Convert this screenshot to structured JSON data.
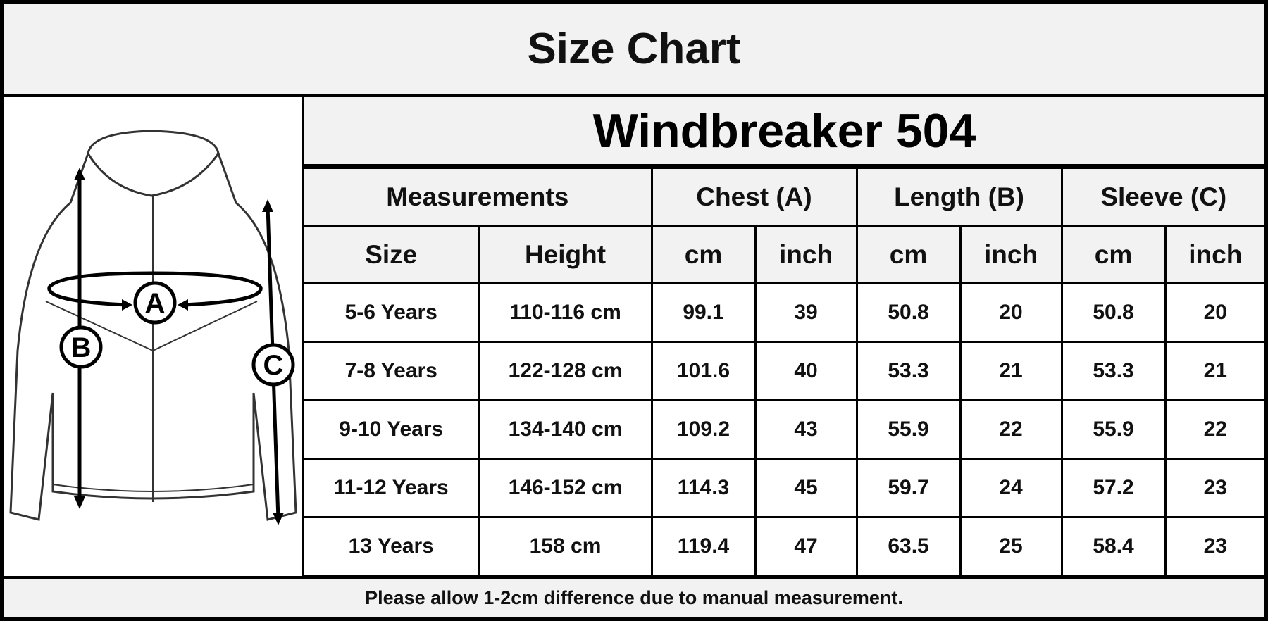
{
  "title": "Size Chart",
  "model": "Windbreaker 504",
  "diagram": {
    "labels": {
      "a": "A",
      "b": "B",
      "c": "C"
    },
    "image": "jacket-sketch"
  },
  "headers": {
    "group": [
      "Measurements",
      "Chest (A)",
      "Length (B)",
      "Sleeve (C)"
    ],
    "sub": [
      "Size",
      "Height",
      "cm",
      "inch",
      "cm",
      "inch",
      "cm",
      "inch"
    ]
  },
  "rows": [
    [
      "5-6 Years",
      "110-116 cm",
      "99.1",
      "39",
      "50.8",
      "20",
      "50.8",
      "20"
    ],
    [
      "7-8 Years",
      "122-128 cm",
      "101.6",
      "40",
      "53.3",
      "21",
      "53.3",
      "21"
    ],
    [
      "9-10 Years",
      "134-140 cm",
      "109.2",
      "43",
      "55.9",
      "22",
      "55.9",
      "22"
    ],
    [
      "11-12 Years",
      "146-152 cm",
      "114.3",
      "45",
      "59.7",
      "24",
      "57.2",
      "23"
    ],
    [
      "13 Years",
      "158 cm",
      "119.4",
      "47",
      "63.5",
      "25",
      "58.4",
      "23"
    ]
  ],
  "footer": "Please allow 1-2cm difference due to manual measurement."
}
